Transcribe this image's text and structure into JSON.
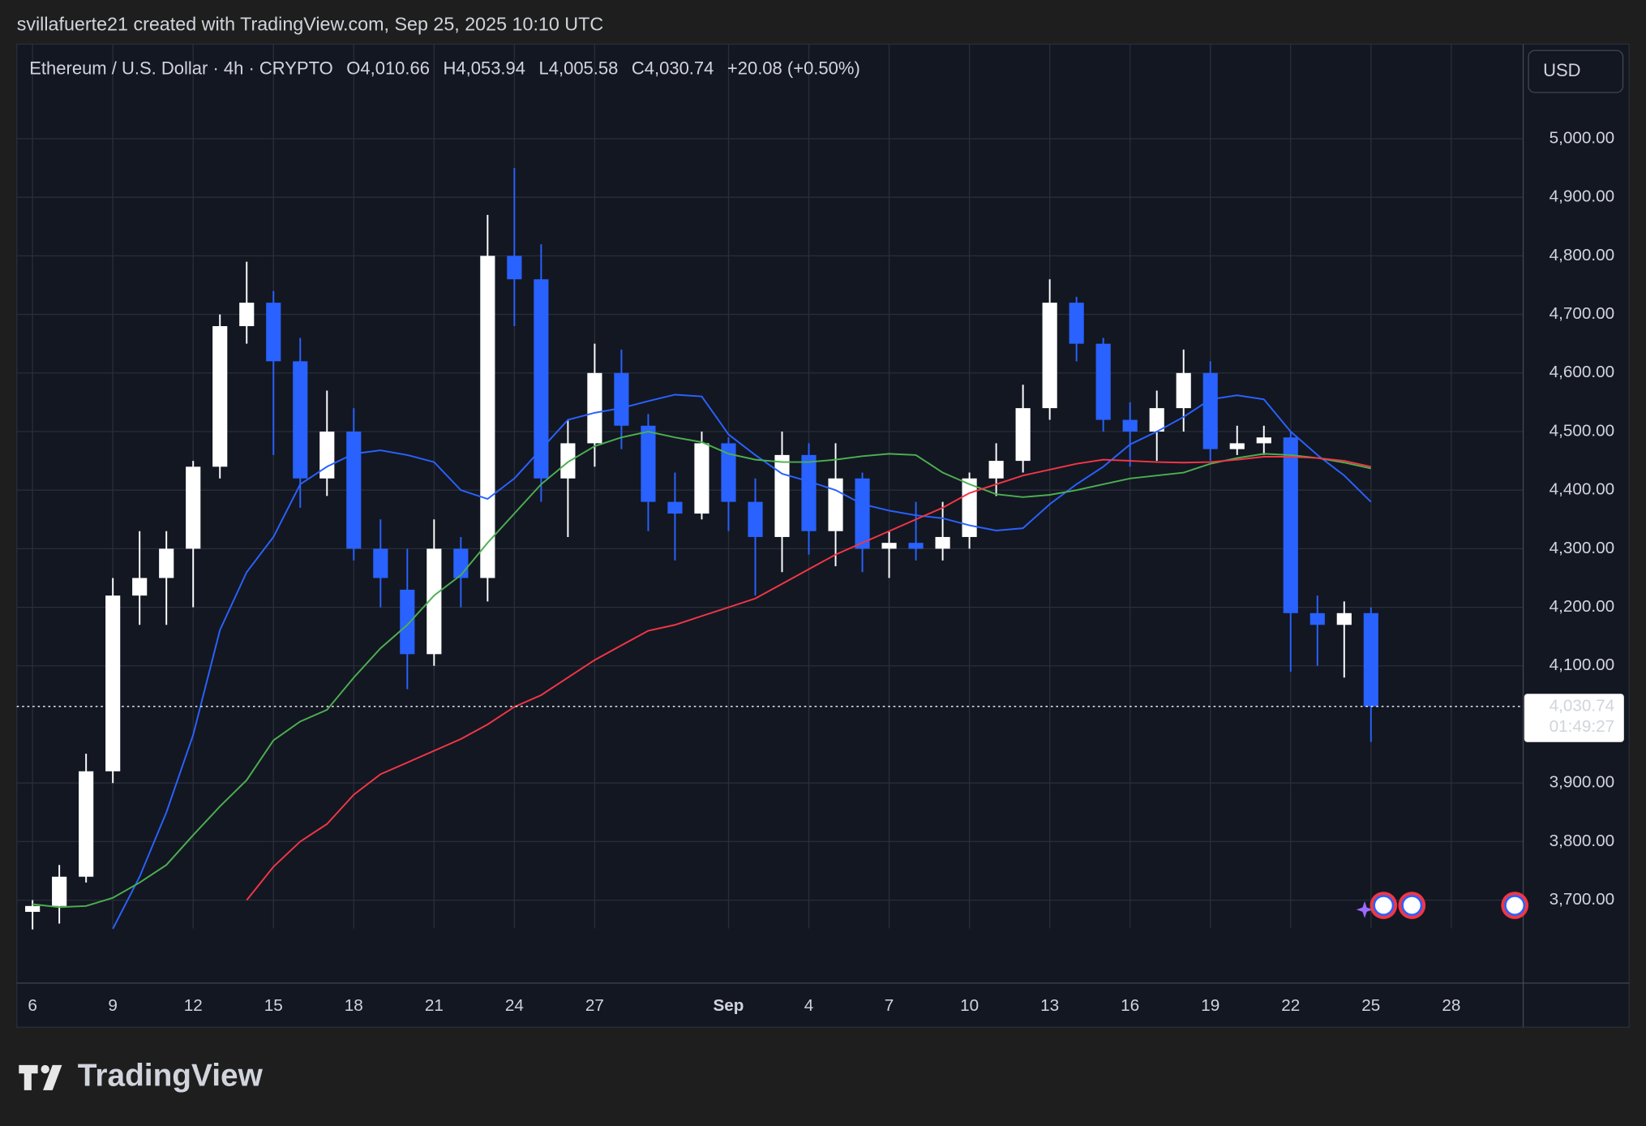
{
  "header": "svillafuerte21 created with TradingView.com, Sep 25, 2025 10:10 UTC",
  "brand": "TradingView",
  "chart_data": {
    "type": "candlestick",
    "symbol": "Ethereum / U.S. Dollar · 4h · CRYPTO",
    "ohlc_labels": [
      "O4,010.66",
      "H4,053.94",
      "L4,005.58",
      "C4,030.74",
      "+20.08 (+0.50%)"
    ],
    "currency": "USD",
    "last_price": {
      "value": 4030.74,
      "label": "4,030.74"
    },
    "countdown": "01:49:27",
    "up_color": "#ffffff",
    "down_color": "#2962ff",
    "grid": true,
    "xlim": [
      "2025-08-05T09:53",
      "2025-09-30T16:28"
    ],
    "ylim": [
      3651.6,
      5161.4
    ],
    "xticks": [
      {
        "value": "2025-08-06",
        "label": "6"
      },
      {
        "value": "2025-08-09",
        "label": "9"
      },
      {
        "value": "2025-08-12",
        "label": "12"
      },
      {
        "value": "2025-08-15",
        "label": "15"
      },
      {
        "value": "2025-08-18",
        "label": "18"
      },
      {
        "value": "2025-08-21",
        "label": "21"
      },
      {
        "value": "2025-08-24",
        "label": "24"
      },
      {
        "value": "2025-08-27",
        "label": "27"
      },
      {
        "value": "2025-09-01",
        "label": "Sep"
      },
      {
        "value": "2025-09-04",
        "label": "4"
      },
      {
        "value": "2025-09-07",
        "label": "7"
      },
      {
        "value": "2025-09-10",
        "label": "10"
      },
      {
        "value": "2025-09-13",
        "label": "13"
      },
      {
        "value": "2025-09-16",
        "label": "16"
      },
      {
        "value": "2025-09-19",
        "label": "19"
      },
      {
        "value": "2025-09-22",
        "label": "22"
      },
      {
        "value": "2025-09-25",
        "label": "25"
      },
      {
        "value": "2025-09-28",
        "label": "28"
      }
    ],
    "yticks": [
      {
        "value": 5000,
        "label": "5,000.00"
      },
      {
        "value": 4900,
        "label": "4,900.00"
      },
      {
        "value": 4800,
        "label": "4,800.00"
      },
      {
        "value": 4700,
        "label": "4,700.00"
      },
      {
        "value": 4600,
        "label": "4,600.00"
      },
      {
        "value": 4500,
        "label": "4,500.00"
      },
      {
        "value": 4400,
        "label": "4,400.00"
      },
      {
        "value": 4300,
        "label": "4,300.00"
      },
      {
        "value": 4200,
        "label": "4,200.00"
      },
      {
        "value": 4100,
        "label": "4,100.00"
      },
      {
        "value": 3900,
        "label": "3,900.00"
      },
      {
        "value": 3800,
        "label": "3,800.00"
      },
      {
        "value": 3700,
        "label": "3,700.00"
      }
    ],
    "x": [
      "2025-08-06",
      "2025-08-07",
      "2025-08-08",
      "2025-08-09",
      "2025-08-10",
      "2025-08-11",
      "2025-08-12",
      "2025-08-13",
      "2025-08-14",
      "2025-08-15",
      "2025-08-16",
      "2025-08-17",
      "2025-08-18",
      "2025-08-19",
      "2025-08-20",
      "2025-08-21",
      "2025-08-22",
      "2025-08-23",
      "2025-08-24",
      "2025-08-25",
      "2025-08-26",
      "2025-08-27",
      "2025-08-28",
      "2025-08-29",
      "2025-08-30",
      "2025-08-31",
      "2025-09-01",
      "2025-09-02",
      "2025-09-03",
      "2025-09-04",
      "2025-09-05",
      "2025-09-06",
      "2025-09-07",
      "2025-09-08",
      "2025-09-09",
      "2025-09-10",
      "2025-09-11",
      "2025-09-12",
      "2025-09-13",
      "2025-09-14",
      "2025-09-15",
      "2025-09-16",
      "2025-09-17",
      "2025-09-18",
      "2025-09-19",
      "2025-09-20",
      "2025-09-21",
      "2025-09-22",
      "2025-09-23",
      "2025-09-24",
      "2025-09-25"
    ],
    "open": [
      3680,
      3690,
      3740,
      3920,
      4220,
      4250,
      4300,
      4440,
      4680,
      4720,
      4620,
      4420,
      4500,
      4300,
      4230,
      4120,
      4300,
      4250,
      4800,
      4760,
      4420,
      4480,
      4600,
      4510,
      4380,
      4360,
      4480,
      4380,
      4320,
      4460,
      4330,
      4420,
      4300,
      4310,
      4300,
      4320,
      4420,
      4450,
      4540,
      4720,
      4650,
      4520,
      4500,
      4540,
      4600,
      4470,
      4480,
      4490,
      4190,
      4170,
      4190
    ],
    "high": [
      3700,
      3760,
      3950,
      4250,
      4330,
      4330,
      4450,
      4700,
      4790,
      4740,
      4660,
      4570,
      4540,
      4350,
      4300,
      4350,
      4320,
      4870,
      4950,
      4820,
      4520,
      4650,
      4640,
      4530,
      4430,
      4500,
      4490,
      4420,
      4500,
      4480,
      4480,
      4430,
      4330,
      4380,
      4380,
      4430,
      4480,
      4580,
      4760,
      4730,
      4660,
      4550,
      4570,
      4640,
      4620,
      4510,
      4510,
      4500,
      4220,
      4210,
      4200
    ],
    "low": [
      3650,
      3660,
      3730,
      3900,
      4170,
      4170,
      4200,
      4420,
      4650,
      4460,
      4370,
      4390,
      4280,
      4200,
      4060,
      4100,
      4200,
      4210,
      4680,
      4380,
      4320,
      4440,
      4470,
      4330,
      4280,
      4350,
      4330,
      4220,
      4260,
      4290,
      4270,
      4260,
      4250,
      4280,
      4280,
      4300,
      4390,
      4430,
      4520,
      4620,
      4500,
      4440,
      4450,
      4500,
      4450,
      4460,
      4460,
      4090,
      4100,
      4080,
      3970
    ],
    "close": [
      3690,
      3740,
      3920,
      4220,
      4250,
      4300,
      4440,
      4680,
      4720,
      4620,
      4420,
      4500,
      4300,
      4250,
      4120,
      4300,
      4250,
      4800,
      4760,
      4420,
      4480,
      4600,
      4510,
      4380,
      4360,
      4480,
      4380,
      4320,
      4460,
      4330,
      4420,
      4300,
      4310,
      4300,
      4320,
      4420,
      4450,
      4540,
      4720,
      4650,
      4520,
      4500,
      4540,
      4600,
      4470,
      4480,
      4490,
      4190,
      4170,
      4190,
      4030.74
    ],
    "ma_lines": [
      {
        "color": "#2962ff",
        "values": [
          null,
          null,
          null,
          3651,
          3740,
          3850,
          3982,
          4161,
          4260,
          4320,
          4410,
          4440,
          4462,
          4468,
          4460,
          4448,
          4400,
          4385,
          4420,
          4470,
          4520,
          4532,
          4540,
          4552,
          4563,
          4560,
          4495,
          4460,
          4428,
          4415,
          4400,
          4376,
          4365,
          4357,
          4352,
          4340,
          4331,
          4335,
          4376,
          4410,
          4440,
          4478,
          4500,
          4525,
          4555,
          4562,
          4555,
          4500,
          4460,
          4425,
          4380
        ]
      },
      {
        "color": "#4caf50",
        "values": [
          3693,
          3688,
          3690,
          3704,
          3730,
          3760,
          3811,
          3860,
          3905,
          3973,
          4005,
          4025,
          4080,
          4130,
          4170,
          4220,
          4255,
          4310,
          4360,
          4410,
          4448,
          4475,
          4490,
          4500,
          4490,
          4482,
          4462,
          4452,
          4448,
          4448,
          4452,
          4458,
          4462,
          4460,
          4430,
          4410,
          4393,
          4388,
          4392,
          4400,
          4410,
          4420,
          4425,
          4430,
          4445,
          4455,
          4462,
          4460,
          4455,
          4447,
          4437
        ]
      },
      {
        "color": "#f23645",
        "values": [
          null,
          null,
          null,
          null,
          null,
          null,
          null,
          null,
          3700,
          3757,
          3800,
          3830,
          3880,
          3915,
          3935,
          3955,
          3975,
          4000,
          4030,
          4050,
          4080,
          4110,
          4135,
          4160,
          4170,
          4185,
          4200,
          4215,
          4240,
          4265,
          4290,
          4310,
          4330,
          4350,
          4370,
          4395,
          4410,
          4425,
          4435,
          4445,
          4452,
          4450,
          4448,
          4447,
          4448,
          4452,
          4457,
          4457,
          4455,
          4450,
          4440
        ]
      }
    ]
  }
}
